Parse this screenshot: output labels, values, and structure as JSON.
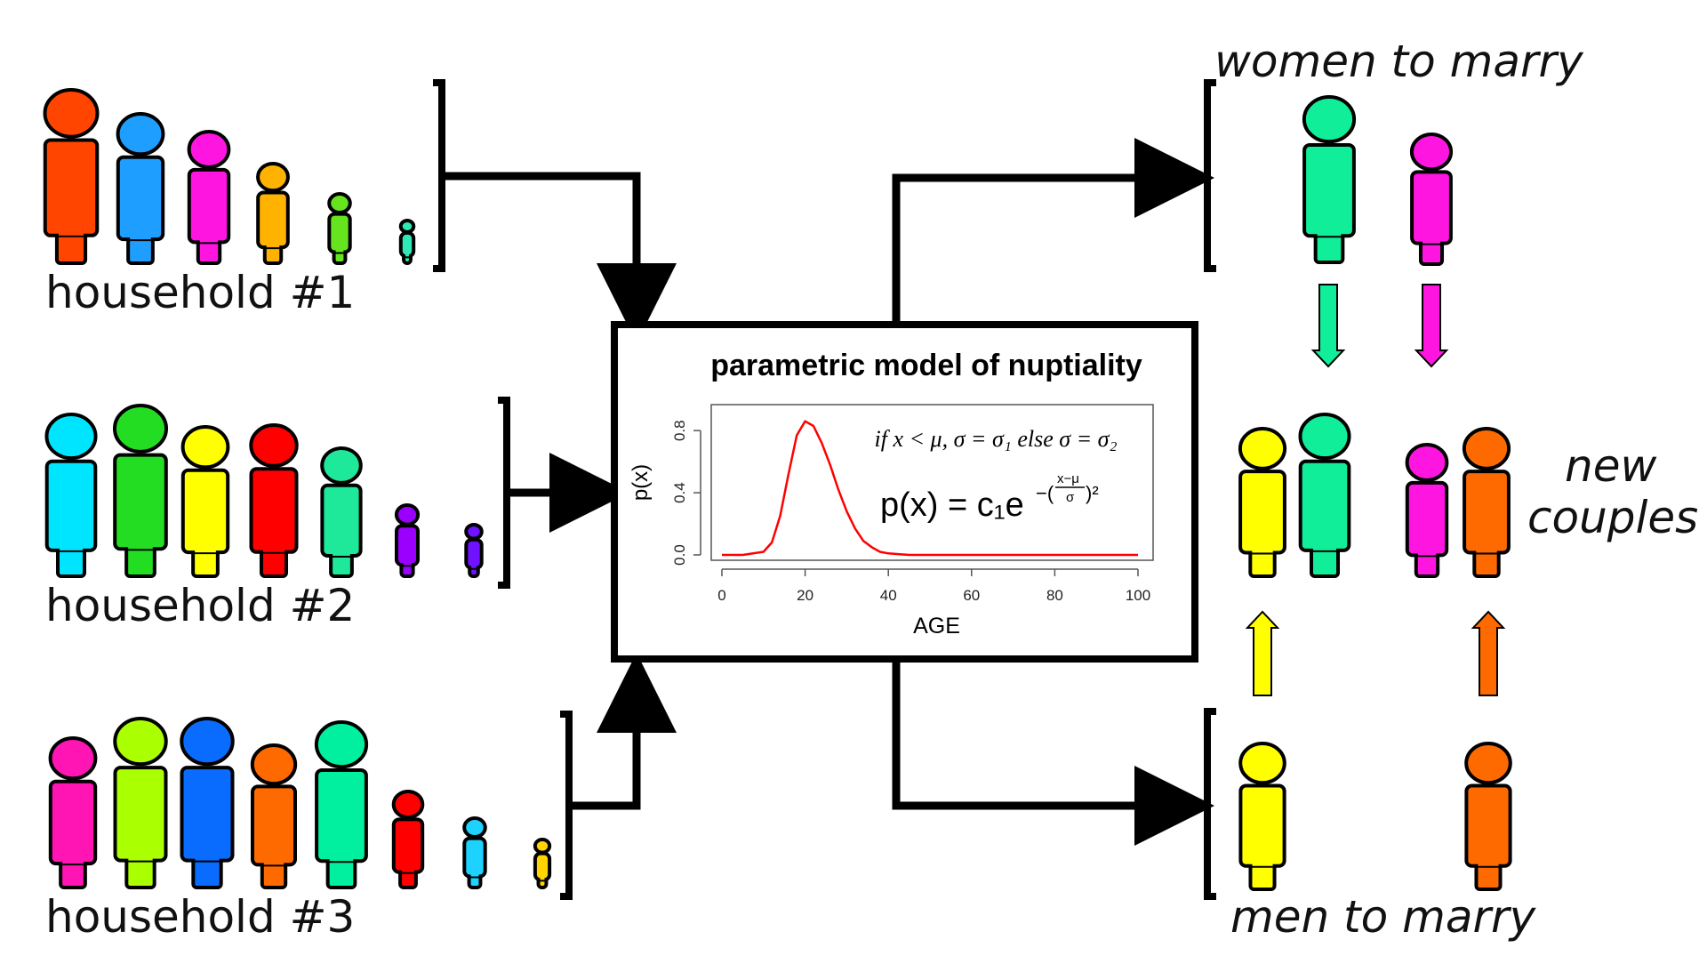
{
  "households": [
    {
      "label": "household #1",
      "people_colors": [
        "#ff4500",
        "#1e9eff",
        "#ff15e0",
        "#ffb300",
        "#66e41d",
        "#2ee8b5"
      ]
    },
    {
      "label": "household #2",
      "people_colors": [
        "#00e5ff",
        "#22dd22",
        "#ffff00",
        "#ff0000",
        "#1ee89a",
        "#9b00ff",
        "#7012ff"
      ]
    },
    {
      "label": "household #3",
      "people_colors": [
        "#ff14b4",
        "#aaff00",
        "#0a6cff",
        "#ff6a00",
        "#00f0a0",
        "#ff0000",
        "#1ed2ff",
        "#ffd400"
      ]
    }
  ],
  "model_box": {
    "title": "parametric model of nuptiality",
    "condition_text": "if x < μ, σ = σ₁ else σ = σ₂",
    "formula_lhs": "p(x) = c₁e",
    "formula_exp_sign": "−(",
    "formula_exp_num": "x−μ",
    "formula_exp_den": "σ",
    "formula_exp_close": ")²"
  },
  "chart_data": {
    "type": "line",
    "xlabel": "AGE",
    "ylabel": "p(x)",
    "xlim": [
      0,
      100
    ],
    "ylim": [
      0,
      0.95
    ],
    "xticks": [
      "0",
      "20",
      "40",
      "60",
      "80",
      "100"
    ],
    "yticks": [
      "0.0",
      "0.4",
      "0.8"
    ],
    "series": [
      {
        "color": "#ff0000",
        "x": [
          0,
          5,
          10,
          12,
          14,
          16,
          18,
          20,
          22,
          24,
          26,
          28,
          30,
          32,
          34,
          36,
          38,
          40,
          45,
          50,
          60,
          80,
          100
        ],
        "y": [
          0.0,
          0.0,
          0.02,
          0.08,
          0.25,
          0.52,
          0.77,
          0.86,
          0.83,
          0.72,
          0.58,
          0.42,
          0.28,
          0.17,
          0.09,
          0.05,
          0.02,
          0.01,
          0.0,
          0.0,
          0.0,
          0.0,
          0.0
        ]
      }
    ]
  },
  "women": {
    "label": "women to marry",
    "colors": [
      "#11ee99",
      "#ff15e0"
    ]
  },
  "men": {
    "label": "men to marry",
    "colors": [
      "#ffff00",
      "#ff6a00"
    ]
  },
  "couples": {
    "label_line1": "new",
    "label_line2": "couples",
    "colors": [
      "#ffff00",
      "#11ee99",
      "#ff15e0",
      "#ff6a00"
    ]
  },
  "arrow_colors": {
    "women_down": [
      "#11ee99",
      "#ff15e0"
    ],
    "men_up": [
      "#ffff00",
      "#ff6a00"
    ]
  }
}
